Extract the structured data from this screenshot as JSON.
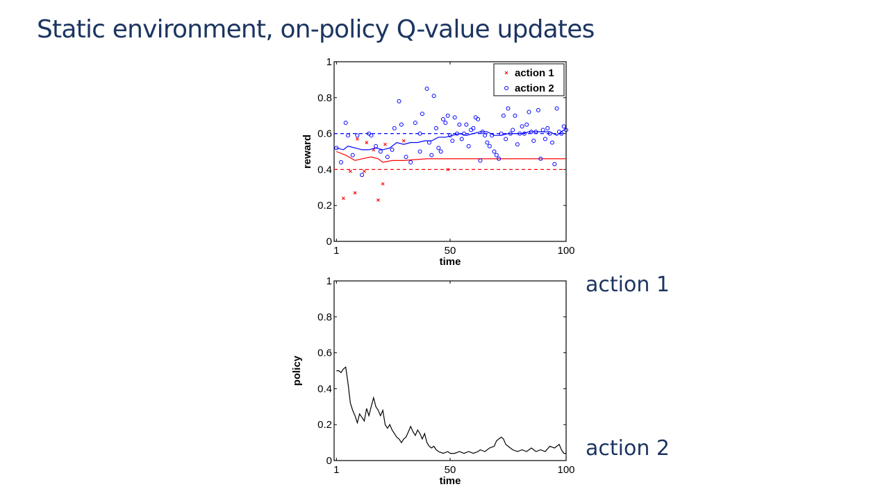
{
  "slide": {
    "title": "Static environment, on-policy Q-value updates",
    "side_labels": {
      "top": "action 1",
      "bottom": "action 2"
    }
  },
  "chart_data": [
    {
      "type": "scatter",
      "xlabel": "time",
      "ylabel": "reward",
      "xlim": [
        0,
        100
      ],
      "ylim": [
        0,
        1
      ],
      "xticks": [
        1,
        50,
        100
      ],
      "yticks": [
        0,
        0.2,
        0.4,
        0.6,
        0.8,
        1
      ],
      "ytick_labels": [
        "0",
        "0.2",
        "0.4",
        "0.6",
        "0.8",
        "1"
      ],
      "grid": false,
      "legend_position": "top-right",
      "series": [
        {
          "name": "action 1",
          "marker": "x",
          "color": "#ff0000",
          "points": [
            [
              4,
              0.24
            ],
            [
              7,
              0.39
            ],
            [
              9,
              0.27
            ],
            [
              10,
              0.57
            ],
            [
              13,
              0.39
            ],
            [
              14,
              0.55
            ],
            [
              17,
              0.51
            ],
            [
              19,
              0.23
            ],
            [
              21,
              0.32
            ],
            [
              22,
              0.54
            ],
            [
              30,
              0.56
            ],
            [
              49,
              0.4
            ]
          ],
          "reference_line": 0.4,
          "running_mean": [
            [
              1,
              0.5
            ],
            [
              5,
              0.48
            ],
            [
              9,
              0.45
            ],
            [
              12,
              0.46
            ],
            [
              16,
              0.47
            ],
            [
              19,
              0.46
            ],
            [
              21,
              0.44
            ],
            [
              25,
              0.45
            ],
            [
              30,
              0.45
            ],
            [
              40,
              0.46
            ],
            [
              100,
              0.46
            ]
          ]
        },
        {
          "name": "action 2",
          "marker": "o",
          "color": "#0000ff",
          "points": [
            [
              1,
              0.52
            ],
            [
              3,
              0.44
            ],
            [
              5,
              0.66
            ],
            [
              6,
              0.59
            ],
            [
              8,
              0.48
            ],
            [
              10,
              0.59
            ],
            [
              12,
              0.37
            ],
            [
              15,
              0.6
            ],
            [
              16,
              0.59
            ],
            [
              18,
              0.53
            ],
            [
              20,
              0.5
            ],
            [
              23,
              0.47
            ],
            [
              25,
              0.51
            ],
            [
              26,
              0.63
            ],
            [
              28,
              0.78
            ],
            [
              29,
              0.65
            ],
            [
              31,
              0.47
            ],
            [
              33,
              0.44
            ],
            [
              35,
              0.66
            ],
            [
              37,
              0.5
            ],
            [
              37,
              0.6
            ],
            [
              38,
              0.71
            ],
            [
              40,
              0.85
            ],
            [
              41,
              0.55
            ],
            [
              42,
              0.48
            ],
            [
              43,
              0.81
            ],
            [
              44,
              0.63
            ],
            [
              45,
              0.52
            ],
            [
              46,
              0.5
            ],
            [
              47,
              0.68
            ],
            [
              48,
              0.66
            ],
            [
              49,
              0.7
            ],
            [
              50,
              0.59
            ],
            [
              51,
              0.56
            ],
            [
              52,
              0.69
            ],
            [
              53,
              0.6
            ],
            [
              54,
              0.65
            ],
            [
              55,
              0.57
            ],
            [
              56,
              0.6
            ],
            [
              57,
              0.65
            ],
            [
              58,
              0.53
            ],
            [
              59,
              0.62
            ],
            [
              60,
              0.63
            ],
            [
              61,
              0.69
            ],
            [
              62,
              0.68
            ],
            [
              63,
              0.45
            ],
            [
              64,
              0.61
            ],
            [
              65,
              0.59
            ],
            [
              66,
              0.55
            ],
            [
              67,
              0.53
            ],
            [
              68,
              0.59
            ],
            [
              69,
              0.5
            ],
            [
              70,
              0.48
            ],
            [
              71,
              0.46
            ],
            [
              72,
              0.6
            ],
            [
              73,
              0.7
            ],
            [
              74,
              0.57
            ],
            [
              75,
              0.74
            ],
            [
              76,
              0.6
            ],
            [
              77,
              0.62
            ],
            [
              78,
              0.7
            ],
            [
              79,
              0.54
            ],
            [
              80,
              0.6
            ],
            [
              81,
              0.64
            ],
            [
              82,
              0.6
            ],
            [
              83,
              0.65
            ],
            [
              84,
              0.72
            ],
            [
              85,
              0.61
            ],
            [
              86,
              0.56
            ],
            [
              87,
              0.61
            ],
            [
              88,
              0.73
            ],
            [
              89,
              0.46
            ],
            [
              90,
              0.62
            ],
            [
              91,
              0.57
            ],
            [
              92,
              0.63
            ],
            [
              93,
              0.6
            ],
            [
              94,
              0.55
            ],
            [
              95,
              0.43
            ],
            [
              96,
              0.74
            ],
            [
              97,
              0.61
            ],
            [
              98,
              0.6
            ],
            [
              99,
              0.64
            ],
            [
              100,
              0.62
            ]
          ],
          "reference_line": 0.6,
          "running_mean": [
            [
              1,
              0.52
            ],
            [
              4,
              0.51
            ],
            [
              6,
              0.53
            ],
            [
              9,
              0.52
            ],
            [
              12,
              0.51
            ],
            [
              15,
              0.51
            ],
            [
              18,
              0.52
            ],
            [
              21,
              0.51
            ],
            [
              24,
              0.52
            ],
            [
              27,
              0.55
            ],
            [
              30,
              0.54
            ],
            [
              33,
              0.55
            ],
            [
              36,
              0.55
            ],
            [
              39,
              0.56
            ],
            [
              42,
              0.56
            ],
            [
              45,
              0.58
            ],
            [
              48,
              0.58
            ],
            [
              51,
              0.59
            ],
            [
              54,
              0.6
            ],
            [
              57,
              0.59
            ],
            [
              60,
              0.6
            ],
            [
              63,
              0.61
            ],
            [
              66,
              0.61
            ],
            [
              69,
              0.59
            ],
            [
              72,
              0.59
            ],
            [
              75,
              0.6
            ],
            [
              78,
              0.6
            ],
            [
              81,
              0.6
            ],
            [
              84,
              0.61
            ],
            [
              87,
              0.61
            ],
            [
              90,
              0.61
            ],
            [
              93,
              0.61
            ],
            [
              96,
              0.59
            ],
            [
              98,
              0.61
            ],
            [
              100,
              0.63
            ]
          ]
        }
      ]
    },
    {
      "type": "line",
      "xlabel": "time",
      "ylabel": "policy",
      "xlim": [
        0,
        100
      ],
      "ylim": [
        0,
        1
      ],
      "xticks": [
        1,
        50,
        100
      ],
      "yticks": [
        0,
        0.2,
        0.4,
        0.6,
        0.8,
        1
      ],
      "ytick_labels": [
        "0",
        "0.2",
        "0.4",
        "0.6",
        "0.8",
        "1"
      ],
      "grid": false,
      "series": [
        {
          "color": "#000000",
          "points": [
            [
              1,
              0.5
            ],
            [
              2,
              0.5
            ],
            [
              3,
              0.49
            ],
            [
              4,
              0.51
            ],
            [
              5,
              0.52
            ],
            [
              6,
              0.43
            ],
            [
              7,
              0.32
            ],
            [
              8,
              0.28
            ],
            [
              9,
              0.25
            ],
            [
              10,
              0.21
            ],
            [
              11,
              0.26
            ],
            [
              12,
              0.24
            ],
            [
              13,
              0.22
            ],
            [
              14,
              0.29
            ],
            [
              15,
              0.25
            ],
            [
              16,
              0.3
            ],
            [
              17,
              0.35
            ],
            [
              18,
              0.3
            ],
            [
              19,
              0.28
            ],
            [
              20,
              0.25
            ],
            [
              21,
              0.28
            ],
            [
              22,
              0.2
            ],
            [
              23,
              0.18
            ],
            [
              24,
              0.2
            ],
            [
              25,
              0.17
            ],
            [
              26,
              0.15
            ],
            [
              27,
              0.13
            ],
            [
              28,
              0.12
            ],
            [
              29,
              0.1
            ],
            [
              30,
              0.12
            ],
            [
              31,
              0.13
            ],
            [
              32,
              0.16
            ],
            [
              33,
              0.19
            ],
            [
              34,
              0.16
            ],
            [
              35,
              0.14
            ],
            [
              36,
              0.17
            ],
            [
              37,
              0.15
            ],
            [
              38,
              0.12
            ],
            [
              39,
              0.15
            ],
            [
              40,
              0.1
            ],
            [
              41,
              0.08
            ],
            [
              42,
              0.07
            ],
            [
              43,
              0.08
            ],
            [
              44,
              0.06
            ],
            [
              45,
              0.05
            ],
            [
              47,
              0.04
            ],
            [
              49,
              0.05
            ],
            [
              50,
              0.04
            ],
            [
              52,
              0.04
            ],
            [
              54,
              0.05
            ],
            [
              56,
              0.04
            ],
            [
              58,
              0.05
            ],
            [
              60,
              0.04
            ],
            [
              62,
              0.05
            ],
            [
              63,
              0.06
            ],
            [
              65,
              0.05
            ],
            [
              67,
              0.07
            ],
            [
              69,
              0.08
            ],
            [
              70,
              0.11
            ],
            [
              71,
              0.12
            ],
            [
              72,
              0.13
            ],
            [
              73,
              0.12
            ],
            [
              74,
              0.09
            ],
            [
              76,
              0.07
            ],
            [
              77,
              0.06
            ],
            [
              79,
              0.05
            ],
            [
              81,
              0.06
            ],
            [
              83,
              0.05
            ],
            [
              85,
              0.07
            ],
            [
              87,
              0.05
            ],
            [
              89,
              0.06
            ],
            [
              91,
              0.05
            ],
            [
              93,
              0.08
            ],
            [
              95,
              0.07
            ],
            [
              97,
              0.09
            ],
            [
              98,
              0.06
            ],
            [
              99,
              0.04
            ],
            [
              100,
              0.04
            ]
          ]
        }
      ]
    }
  ]
}
